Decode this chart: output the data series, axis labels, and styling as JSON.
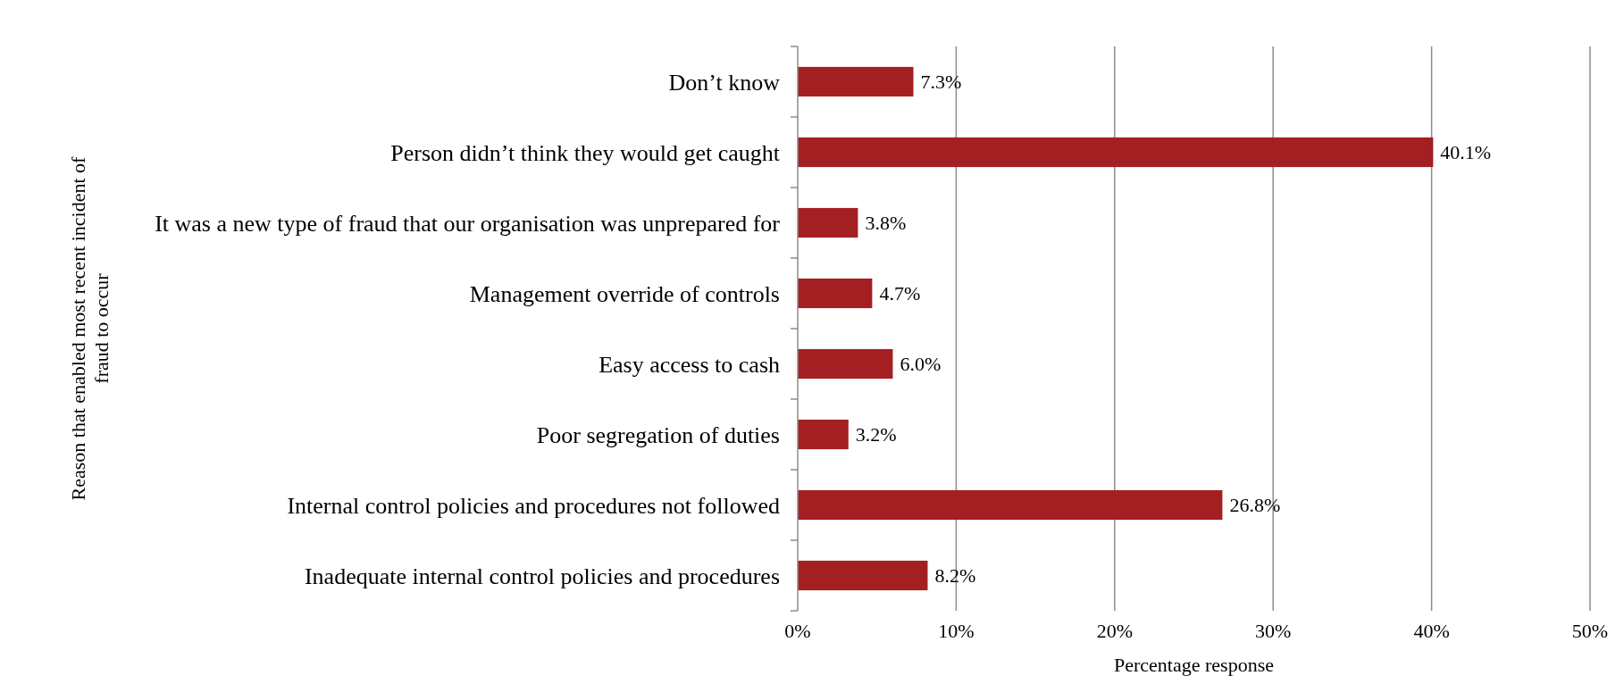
{
  "chart_data": {
    "type": "bar",
    "orientation": "horizontal",
    "xlabel": "Percentage response",
    "ylabel": "Reason that enabled most recent incident of fraud to occur",
    "categories": [
      "Don’t know",
      "Person didn’t think they would get caught",
      "It was a new type of fraud that our organisation was unprepared for",
      "Management override of controls",
      "Easy access to cash",
      "Poor segregation of duties",
      "Internal control policies and procedures not followed",
      "Inadequate internal control policies and procedures"
    ],
    "values": [
      7.3,
      40.1,
      3.8,
      4.7,
      6.0,
      3.2,
      26.8,
      8.2
    ],
    "value_labels": [
      "7.3%",
      "40.1%",
      "3.8%",
      "4.7%",
      "6.0%",
      "3.2%",
      "26.8%",
      "8.2%"
    ],
    "color": "#a31f22",
    "xlim": [
      0,
      50
    ],
    "xticks": [
      {
        "value": 0,
        "label": "0%"
      },
      {
        "value": 10,
        "label": "10%"
      },
      {
        "value": 20,
        "label": "20%"
      },
      {
        "value": 30,
        "label": "30%"
      },
      {
        "value": 40,
        "label": "40%"
      },
      {
        "value": 50,
        "label": "50%"
      }
    ],
    "grid": "x"
  }
}
